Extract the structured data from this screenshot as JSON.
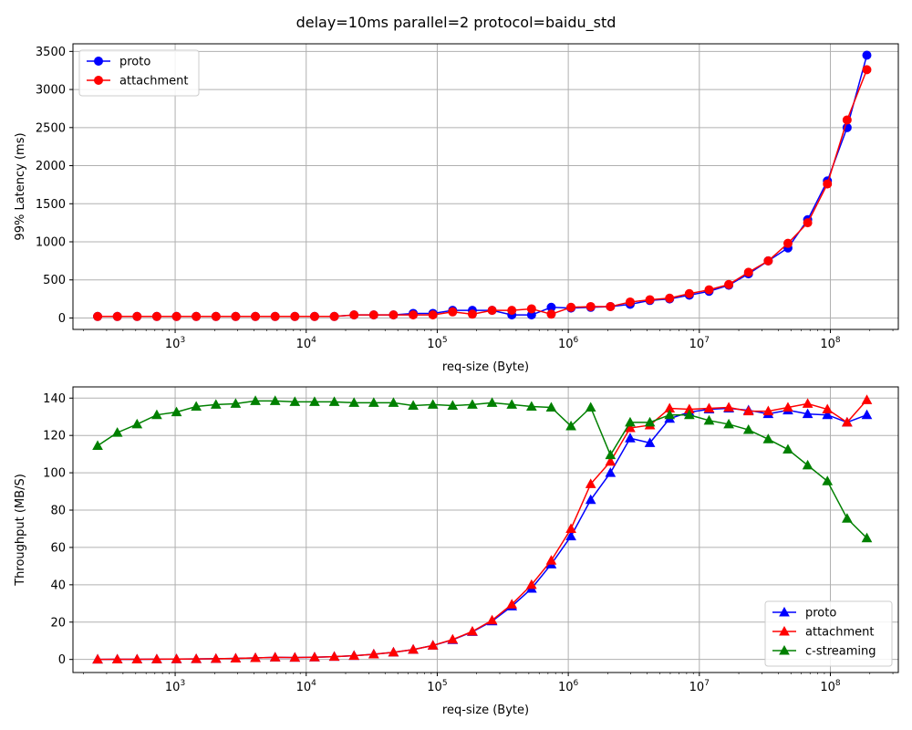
{
  "figure": {
    "title": "delay=10ms parallel=2 protocol=baidu_std"
  },
  "colors": {
    "proto": "#0000ff",
    "attachment": "#ff0000",
    "c-streaming": "#008000"
  },
  "chart_data": [
    {
      "type": "line",
      "name": "latency",
      "xlabel": "req-size (Byte)",
      "ylabel": "99% Latency (ms)",
      "xscale": "log",
      "xlim": [
        166,
        330000000
      ],
      "ylim": [
        -150,
        3600
      ],
      "xticks": [
        {
          "value": 1000,
          "base": "10",
          "exp": "3"
        },
        {
          "value": 10000,
          "base": "10",
          "exp": "4"
        },
        {
          "value": 100000,
          "base": "10",
          "exp": "5"
        },
        {
          "value": 1000000,
          "base": "10",
          "exp": "6"
        },
        {
          "value": 10000000,
          "base": "10",
          "exp": "7"
        },
        {
          "value": 100000000,
          "base": "10",
          "exp": "8"
        }
      ],
      "yticks": [
        0,
        500,
        1000,
        1500,
        2000,
        2500,
        3000,
        3500
      ],
      "grid": true,
      "legend_position": "upper-left",
      "marker": "circle",
      "x": [
        256,
        362,
        512,
        724,
        1024,
        1448,
        2048,
        2896,
        4096,
        5793,
        8192,
        11585,
        16384,
        23170,
        32768,
        46341,
        65536,
        92682,
        131072,
        185364,
        262144,
        370728,
        524288,
        741455,
        1048576,
        1482910,
        2097152,
        2965821,
        4194304,
        5931642,
        8388608,
        11863283,
        16777216,
        23726566,
        33554432,
        47453133,
        67108864,
        94906265,
        134217728,
        189812531
      ],
      "series": [
        {
          "name": "proto",
          "color_key": "proto",
          "values": [
            20,
            20,
            20,
            20,
            20,
            20,
            20,
            20,
            20,
            20,
            20,
            20,
            20,
            40,
            40,
            40,
            60,
            60,
            100,
            100,
            100,
            40,
            40,
            140,
            130,
            140,
            150,
            180,
            230,
            250,
            300,
            350,
            430,
            580,
            750,
            920,
            1290,
            1800,
            2500,
            3450
          ]
        },
        {
          "name": "attachment",
          "color_key": "attachment",
          "values": [
            20,
            20,
            20,
            20,
            20,
            20,
            20,
            20,
            20,
            20,
            20,
            20,
            20,
            40,
            40,
            40,
            40,
            40,
            80,
            50,
            100,
            100,
            120,
            50,
            140,
            150,
            150,
            210,
            240,
            260,
            320,
            370,
            440,
            600,
            750,
            980,
            1250,
            1760,
            2600,
            3260
          ]
        }
      ]
    },
    {
      "type": "line",
      "name": "throughput",
      "xlabel": "req-size (Byte)",
      "ylabel": "Throughput (MB/S)",
      "xscale": "log",
      "xlim": [
        166,
        330000000
      ],
      "ylim": [
        -7,
        146
      ],
      "xticks": [
        {
          "value": 1000,
          "base": "10",
          "exp": "3"
        },
        {
          "value": 10000,
          "base": "10",
          "exp": "4"
        },
        {
          "value": 100000,
          "base": "10",
          "exp": "5"
        },
        {
          "value": 1000000,
          "base": "10",
          "exp": "6"
        },
        {
          "value": 10000000,
          "base": "10",
          "exp": "7"
        },
        {
          "value": 100000000,
          "base": "10",
          "exp": "8"
        }
      ],
      "yticks": [
        0,
        20,
        40,
        60,
        80,
        100,
        120,
        140
      ],
      "grid": true,
      "legend_position": "lower-right",
      "marker": "triangle",
      "x": [
        256,
        362,
        512,
        724,
        1024,
        1448,
        2048,
        2896,
        4096,
        5793,
        8192,
        11585,
        16384,
        23170,
        32768,
        46341,
        65536,
        92682,
        131072,
        185364,
        262144,
        370728,
        524288,
        741455,
        1048576,
        1482910,
        2097152,
        2965821,
        4194304,
        5931642,
        8388608,
        11863283,
        16777216,
        23726566,
        33554432,
        47453133,
        67108864,
        94906265,
        134217728,
        189812531
      ],
      "series": [
        {
          "name": "proto",
          "color_key": "proto",
          "values": [
            0.05,
            0.07,
            0.1,
            0.14,
            0.2,
            0.28,
            0.4,
            0.55,
            0.8,
            1.1,
            1.0,
            1.2,
            1.5,
            2.0,
            2.8,
            3.8,
            5.3,
            7.5,
            10.5,
            14.8,
            20.5,
            28.5,
            38.0,
            51.0,
            66.0,
            85.5,
            100.0,
            118.5,
            116.0,
            129.0,
            132.5,
            134.0,
            134.5,
            133.5,
            131.5,
            133.5,
            131.5,
            131.0,
            127.0,
            131.0
          ]
        },
        {
          "name": "attachment",
          "color_key": "attachment",
          "values": [
            0.05,
            0.07,
            0.1,
            0.14,
            0.2,
            0.28,
            0.4,
            0.55,
            0.8,
            1.1,
            1.0,
            1.2,
            1.5,
            2.0,
            2.8,
            3.8,
            5.3,
            7.5,
            10.7,
            15.0,
            21.0,
            29.5,
            40.0,
            53.0,
            70.0,
            94.0,
            106.0,
            124.0,
            125.5,
            134.5,
            134.0,
            134.5,
            135.0,
            133.0,
            133.0,
            135.0,
            137.0,
            134.0,
            127.0,
            139.0
          ]
        },
        {
          "name": "c-streaming",
          "color_key": "c-streaming",
          "values": [
            114.5,
            121.5,
            126.0,
            131.0,
            132.5,
            135.5,
            136.5,
            137.0,
            138.5,
            138.5,
            138.0,
            138.0,
            138.0,
            137.5,
            137.5,
            137.5,
            136.0,
            136.5,
            136.0,
            136.5,
            137.5,
            136.5,
            135.5,
            135.0,
            125.0,
            135.0,
            109.5,
            127.0,
            127.0,
            131.0,
            131.0,
            128.0,
            126.0,
            123.0,
            118.0,
            112.5,
            104.0,
            95.5,
            75.5,
            65.0
          ]
        }
      ]
    }
  ]
}
